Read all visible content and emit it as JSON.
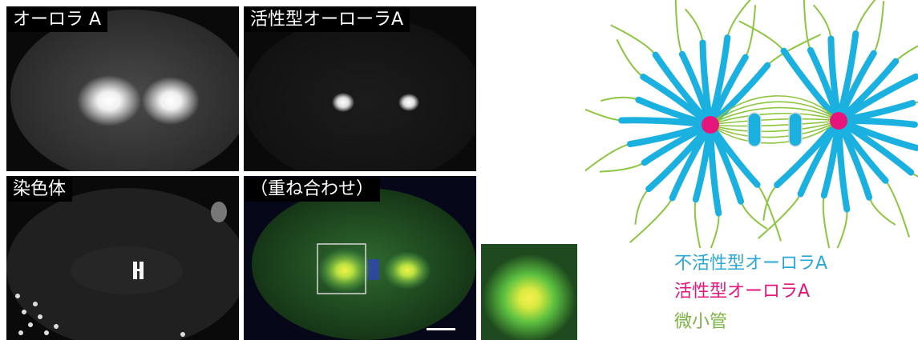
{
  "panels": {
    "aurora_a": {
      "label": "オーロラ A"
    },
    "active_aurora_a": {
      "label": "活性型オーローラA"
    },
    "chromosome": {
      "label": "染色体"
    },
    "merge": {
      "label": "（重ね合わせ）"
    }
  },
  "legend": {
    "inactive": {
      "text": "不活性型オーロラA",
      "color": "#29a8d8"
    },
    "active": {
      "text": "活性型オーロラA",
      "color": "#e5157b"
    },
    "microtubule": {
      "text": "微小管",
      "color": "#7cb342"
    }
  },
  "diagram": {
    "microtubule_color": "#8cc63f",
    "aster_color": "#1ab0e0",
    "pole_color": "#e5157b",
    "chromosome_color": "#1ab0e0"
  }
}
